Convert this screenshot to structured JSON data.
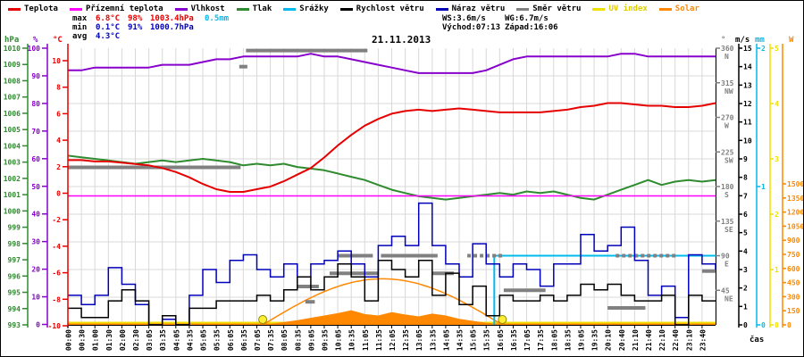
{
  "title": "21.11.2013",
  "legend": {
    "items": [
      {
        "id": "temperature",
        "label": "Teplota",
        "color": "#e60000",
        "label_color": "#000000"
      },
      {
        "id": "ground-temperature",
        "label": "Přízemní teplota",
        "color": "#ff00ff",
        "label_color": "#000000"
      },
      {
        "id": "humidity",
        "label": "Vlhkost",
        "color": "#8800cc",
        "label_color": "#000000"
      },
      {
        "id": "pressure",
        "label": "Tlak",
        "color": "#2e8b2e",
        "label_color": "#000000"
      },
      {
        "id": "rain",
        "label": "Srážky",
        "color": "#00bbee",
        "label_color": "#000000"
      },
      {
        "id": "wind-speed",
        "label": "Rychlost větru",
        "color": "#000000",
        "label_color": "#000000"
      },
      {
        "id": "wind-gust",
        "label": "Náraz větru",
        "color": "#0000bb",
        "label_color": "#000000"
      },
      {
        "id": "wind-direction",
        "label": "Směr větru",
        "color": "#808080",
        "label_color": "#000000"
      },
      {
        "id": "uv-index",
        "label": "UV index",
        "color": "#f0e000",
        "label_color": "#e0cc00"
      },
      {
        "id": "solar",
        "label": "Solar",
        "color": "#ff8800",
        "label_color": "#ff8800"
      }
    ]
  },
  "stats": {
    "max": {
      "label": "max",
      "temp": "6.8°C",
      "humidity": "98%",
      "pressure": "1003.4hPa",
      "rain": "0.5mm"
    },
    "min": {
      "label": "min",
      "temp": "0.1°C",
      "humidity": "91%",
      "pressure": "1000.7hPa"
    },
    "avg": {
      "label": "avg",
      "temp": "4.3°C"
    },
    "wind_summary": {
      "ws": "WS:3.6m/s",
      "wg": "WG:6.7m/s"
    },
    "sun": {
      "rise": "Východ:07:13",
      "set": "Západ:16:06"
    }
  },
  "axes": {
    "pressure": {
      "label": "hPa",
      "color": "#2e8b2e",
      "ticks": [
        1010,
        1009,
        1008,
        1007,
        1006,
        1005,
        1004,
        1003,
        1002,
        1001,
        1000,
        999,
        998,
        997,
        996,
        995,
        994,
        993
      ]
    },
    "humidity": {
      "label": "%",
      "color": "#8800cc",
      "ticks": [
        100,
        90,
        80,
        70,
        60,
        50,
        40,
        30,
        20,
        10,
        0
      ]
    },
    "temperature": {
      "label": "°C",
      "color": "#e60000",
      "ticks": [
        10,
        8,
        6,
        4,
        2,
        0,
        -2,
        -4,
        -6,
        -8,
        -10
      ]
    },
    "direction": {
      "label": "°",
      "color": "#808080",
      "ticks": [
        {
          "deg": 360,
          "abbr": "N"
        },
        {
          "deg": 315,
          "abbr": "NW"
        },
        {
          "deg": 270,
          "abbr": "W"
        },
        {
          "deg": 225,
          "abbr": "SW"
        },
        {
          "deg": 180,
          "abbr": "S"
        },
        {
          "deg": 135,
          "abbr": "SE"
        },
        {
          "deg": 90,
          "abbr": "E"
        },
        {
          "deg": 45,
          "abbr": "NE"
        }
      ]
    },
    "wind": {
      "label": "m/s",
      "color": "#000000",
      "ticks": [
        15,
        14,
        13,
        12,
        11,
        10,
        9,
        8,
        7,
        6,
        5,
        4,
        3,
        2,
        1,
        0
      ]
    },
    "rain": {
      "label": "mm",
      "color": "#00bbee",
      "ticks": [
        2,
        1,
        0
      ]
    },
    "uv": {
      "label": "",
      "color": "#f0e000",
      "ticks": [
        5,
        4,
        3,
        2,
        1,
        0
      ]
    },
    "solar": {
      "label": "W",
      "color": "#ff8800",
      "ticks": [
        1500,
        1350,
        1200,
        1050,
        900,
        750,
        600,
        450,
        300,
        150,
        0
      ]
    },
    "time_label": "čas"
  },
  "chart_data": {
    "type": "line",
    "title": "21.11.2013",
    "x_unit": "hours",
    "x_step_h": 0.5,
    "time_labels": [
      "00:00",
      "00:30",
      "01:00",
      "01:30",
      "02:00",
      "02:30",
      "03:05",
      "03:35",
      "04:05",
      "04:35",
      "05:05",
      "05:35",
      "06:05",
      "06:35",
      "07:05",
      "07:35",
      "08:05",
      "08:35",
      "09:05",
      "09:35",
      "10:05",
      "10:35",
      "11:05",
      "11:35",
      "12:05",
      "12:35",
      "13:05",
      "13:35",
      "14:05",
      "14:35",
      "15:05",
      "15:35",
      "16:05",
      "16:35",
      "17:05",
      "17:35",
      "18:05",
      "18:35",
      "19:05",
      "19:35",
      "20:10",
      "20:40",
      "21:10",
      "21:40",
      "22:10",
      "22:40",
      "23:10",
      "23:40"
    ],
    "axis_ranges": {
      "temp_c": [
        -10,
        10
      ],
      "humidity_pct": [
        0,
        100
      ],
      "pressure_hpa": [
        993,
        1010
      ],
      "wind_ms": [
        0,
        15
      ],
      "direction_deg": [
        0,
        360
      ],
      "rain_mm": [
        0,
        2
      ],
      "uv": [
        0,
        5
      ],
      "solar_w": [
        0,
        1580
      ]
    },
    "series": [
      {
        "id": "temperature",
        "label": "Teplota",
        "color": "#e60000",
        "axis": "temp",
        "render": "line",
        "width": 2,
        "values": [
          2.5,
          2.5,
          2.4,
          2.4,
          2.3,
          2.2,
          2.1,
          1.9,
          1.6,
          1.2,
          0.7,
          0.3,
          0.1,
          0.1,
          0.3,
          0.5,
          0.9,
          1.4,
          1.9,
          2.7,
          3.6,
          4.4,
          5.1,
          5.6,
          6.0,
          6.2,
          6.3,
          6.2,
          6.3,
          6.4,
          6.3,
          6.2,
          6.1,
          6.1,
          6.1,
          6.1,
          6.2,
          6.3,
          6.5,
          6.6,
          6.8,
          6.8,
          6.7,
          6.6,
          6.6,
          6.5,
          6.5,
          6.6,
          6.8
        ]
      },
      {
        "id": "ground_temperature",
        "label": "Přízemní teplota",
        "color": "#ff00ff",
        "axis": "temp",
        "render": "line",
        "width": 1.5,
        "constant": -0.2
      },
      {
        "id": "humidity",
        "label": "Vlhkost",
        "color": "#8800cc",
        "axis": "hum",
        "render": "line",
        "width": 2,
        "values": [
          92,
          92,
          93,
          93,
          93,
          93,
          93,
          94,
          94,
          94,
          95,
          96,
          96,
          97,
          97,
          97,
          97,
          97,
          98,
          97,
          97,
          96,
          95,
          94,
          93,
          92,
          91,
          91,
          91,
          91,
          91,
          92,
          94,
          96,
          97,
          97,
          97,
          97,
          97,
          97,
          97,
          98,
          98,
          97,
          97,
          97,
          97,
          97,
          97
        ]
      },
      {
        "id": "pressure",
        "label": "Tlak",
        "color": "#2e8b2e",
        "axis": "pres",
        "render": "line",
        "width": 2,
        "values": [
          1003.4,
          1003.3,
          1003.2,
          1003.1,
          1003.0,
          1002.9,
          1003.0,
          1003.1,
          1003.0,
          1003.1,
          1003.2,
          1003.1,
          1003.0,
          1002.8,
          1002.9,
          1002.8,
          1002.9,
          1002.7,
          1002.6,
          1002.5,
          1002.3,
          1002.1,
          1001.9,
          1001.6,
          1001.3,
          1001.1,
          1000.9,
          1000.8,
          1000.7,
          1000.8,
          1000.9,
          1001.0,
          1001.1,
          1001.0,
          1001.2,
          1001.1,
          1001.2,
          1001.0,
          1000.8,
          1000.7,
          1001.0,
          1001.3,
          1001.6,
          1001.9,
          1001.6,
          1001.8,
          1001.9,
          1001.8,
          1001.9
        ]
      },
      {
        "id": "wind_gust",
        "label": "Náraz větru",
        "color": "#0000bb",
        "axis": "wind",
        "render": "step",
        "width": 1.5,
        "values": [
          1.6,
          1.1,
          1.6,
          3.1,
          2.2,
          1.1,
          0.0,
          0.3,
          0.0,
          1.6,
          3.0,
          2.3,
          3.5,
          3.8,
          3.0,
          2.6,
          3.3,
          2.6,
          3.3,
          3.5,
          4.0,
          3.3,
          2.6,
          4.3,
          4.8,
          4.3,
          6.6,
          4.3,
          3.3,
          2.6,
          4.4,
          3.3,
          2.6,
          3.3,
          3.0,
          2.1,
          3.3,
          3.3,
          4.9,
          4.0,
          4.3,
          5.3,
          3.5,
          1.6,
          2.1,
          0.4,
          3.8,
          3.3,
          3.0
        ]
      },
      {
        "id": "wind_speed",
        "label": "Rychlost větru",
        "color": "#000000",
        "axis": "wind",
        "render": "step",
        "width": 1.5,
        "values": [
          0.9,
          0.4,
          0.4,
          1.3,
          1.9,
          1.3,
          0.0,
          0.5,
          0.0,
          0.9,
          0.9,
          1.3,
          1.3,
          1.3,
          1.6,
          1.3,
          1.9,
          2.6,
          1.9,
          2.6,
          3.3,
          2.6,
          1.3,
          3.5,
          3.0,
          2.6,
          3.5,
          1.6,
          2.8,
          1.1,
          2.1,
          0.5,
          1.6,
          1.3,
          1.3,
          1.6,
          1.3,
          1.6,
          2.2,
          1.9,
          2.2,
          1.6,
          1.3,
          1.3,
          1.6,
          0.0,
          1.6,
          1.3,
          1.3
        ]
      },
      {
        "id": "solar",
        "label": "Solar",
        "color": "#ff8800",
        "axis": "sol",
        "render": "area",
        "width": 1,
        "values": [
          0,
          0,
          0,
          0,
          0,
          0,
          0,
          0,
          0,
          0,
          0,
          0,
          0,
          0,
          0,
          5,
          25,
          45,
          70,
          95,
          120,
          150,
          110,
          95,
          130,
          105,
          85,
          115,
          95,
          60,
          38,
          18,
          5,
          0,
          0,
          0,
          0,
          0,
          0,
          0,
          0,
          0,
          0,
          0,
          0,
          0,
          0,
          0,
          0
        ]
      },
      {
        "id": "uv",
        "label": "UV index",
        "color": "#f0e000",
        "axis": "uv",
        "render": "line",
        "width": 2,
        "constant": 0,
        "y_offset": -2.5
      }
    ],
    "clear_sky_solar": {
      "sunrise_h": 7.22,
      "sunset_h": 16.1,
      "peak_w": 490,
      "color": "#ff8800"
    },
    "rain_event": {
      "time_h": 15.8,
      "total_mm": 0.5,
      "color": "#00bbee"
    },
    "wind_direction_segments": [
      {
        "from_h": 0,
        "to_h": 6.4,
        "deg": 205,
        "dashed": false
      },
      {
        "from_h": 6.35,
        "to_h": 6.65,
        "deg": 336,
        "dashed": false
      },
      {
        "from_h": 6.6,
        "to_h": 11.1,
        "deg": 357,
        "dashed": false
      },
      {
        "from_h": 8.5,
        "to_h": 9.3,
        "deg": 50,
        "dashed": false
      },
      {
        "from_h": 8.8,
        "to_h": 9.15,
        "deg": 30,
        "dashed": false
      },
      {
        "from_h": 9.7,
        "to_h": 11.5,
        "deg": 67,
        "dashed": false
      },
      {
        "from_h": 10.0,
        "to_h": 11.3,
        "deg": 90,
        "dashed": false
      },
      {
        "from_h": 11.6,
        "to_h": 13.7,
        "deg": 90,
        "dashed": false
      },
      {
        "from_h": 13.5,
        "to_h": 14.3,
        "deg": 67,
        "dashed": false
      },
      {
        "from_h": 14.8,
        "to_h": 16.1,
        "deg": 90,
        "dashed": true
      },
      {
        "from_h": 16.15,
        "to_h": 17.7,
        "deg": 45,
        "dashed": false
      },
      {
        "from_h": 20.0,
        "to_h": 21.4,
        "deg": 22,
        "dashed": false
      },
      {
        "from_h": 20.3,
        "to_h": 22.6,
        "deg": 90,
        "dashed": true
      },
      {
        "from_h": 23.5,
        "to_h": 24,
        "deg": 70,
        "dashed": false
      }
    ],
    "sun_markers": {
      "sunrise_h": 7.22,
      "sunset_h": 16.1,
      "color": "#ffee33"
    },
    "grid": true,
    "legend_position": "top"
  }
}
